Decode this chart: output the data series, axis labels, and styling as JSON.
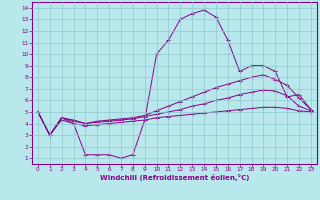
{
  "xlabel": "Windchill (Refroidissement éolien,°C)",
  "xlim": [
    -0.5,
    23.5
  ],
  "ylim": [
    0.5,
    14.5
  ],
  "xticks": [
    0,
    1,
    2,
    3,
    4,
    5,
    6,
    7,
    8,
    9,
    10,
    11,
    12,
    13,
    14,
    15,
    16,
    17,
    18,
    19,
    20,
    21,
    22,
    23
  ],
  "yticks": [
    1,
    2,
    3,
    4,
    5,
    6,
    7,
    8,
    9,
    10,
    11,
    12,
    13,
    14
  ],
  "background_color": "#b8e8ec",
  "grid_color": "#90c8d0",
  "line_color": "#880088",
  "line1_y": [
    5.0,
    3.0,
    4.5,
    4.0,
    1.3,
    1.3,
    1.3,
    1.0,
    1.3,
    4.3,
    10.0,
    11.2,
    13.0,
    13.5,
    13.8,
    13.2,
    11.2,
    8.5,
    9.0,
    9.0,
    8.5,
    6.3,
    6.5,
    5.2
  ],
  "line2_y": [
    5.0,
    3.0,
    4.5,
    4.3,
    4.0,
    4.2,
    4.3,
    4.4,
    4.5,
    4.7,
    5.1,
    5.5,
    5.9,
    6.3,
    6.7,
    7.1,
    7.4,
    7.7,
    8.0,
    8.2,
    7.8,
    7.3,
    6.2,
    5.2
  ],
  "line3_y": [
    5.0,
    3.0,
    4.5,
    4.2,
    4.0,
    4.1,
    4.2,
    4.3,
    4.4,
    4.6,
    4.8,
    5.0,
    5.2,
    5.5,
    5.7,
    6.0,
    6.2,
    6.5,
    6.7,
    6.9,
    6.8,
    6.4,
    5.5,
    5.1
  ],
  "line4_y": [
    5.0,
    3.0,
    4.3,
    4.0,
    3.8,
    3.9,
    4.0,
    4.1,
    4.2,
    4.3,
    4.5,
    4.6,
    4.7,
    4.8,
    4.9,
    5.0,
    5.1,
    5.2,
    5.3,
    5.4,
    5.4,
    5.3,
    5.1,
    5.0
  ]
}
